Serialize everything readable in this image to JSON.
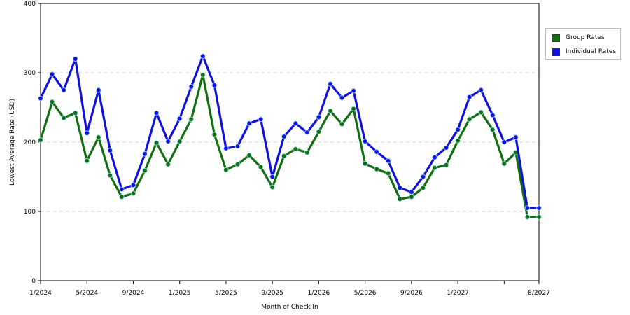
{
  "chart_data": {
    "type": "line",
    "title": "",
    "xlabel": "Month of Check In",
    "ylabel": "Lowest Average Rate (USD)",
    "ylim": [
      0,
      400
    ],
    "yticks": [
      0,
      100,
      200,
      300,
      400
    ],
    "grid": "horizontal dashed",
    "legend_position": "right",
    "x_count": 44,
    "xtick_labels": [
      {
        "i": 0,
        "label": "1/2024"
      },
      {
        "i": 4,
        "label": "5/2024"
      },
      {
        "i": 8,
        "label": "9/2024"
      },
      {
        "i": 12,
        "label": "1/2025"
      },
      {
        "i": 16,
        "label": "5/2025"
      },
      {
        "i": 20,
        "label": "9/2025"
      },
      {
        "i": 24,
        "label": "1/2026"
      },
      {
        "i": 28,
        "label": "5/2026"
      },
      {
        "i": 32,
        "label": "9/2026"
      },
      {
        "i": 36,
        "label": "1/2027"
      },
      {
        "i": 40,
        "label": ""
      },
      {
        "i": 43,
        "label": "8/2027"
      }
    ],
    "series": [
      {
        "name": "Group Rates",
        "color": "#107010",
        "values": [
          203,
          258,
          235,
          242,
          173,
          207,
          152,
          121,
          126,
          159,
          199,
          168,
          201,
          233,
          297,
          211,
          160,
          168,
          181,
          164,
          135,
          180,
          190,
          185,
          215,
          245,
          226,
          248,
          169,
          161,
          155,
          118,
          121,
          134,
          163,
          167,
          202,
          233,
          243,
          218,
          169,
          185,
          92,
          92
        ]
      },
      {
        "name": "Individual Rates",
        "color": "#1010e0",
        "values": [
          263,
          298,
          275,
          320,
          213,
          275,
          188,
          132,
          138,
          183,
          242,
          201,
          234,
          280,
          324,
          282,
          191,
          194,
          227,
          233,
          150,
          208,
          227,
          214,
          236,
          284,
          264,
          274,
          201,
          186,
          173,
          134,
          128,
          150,
          178,
          192,
          218,
          265,
          275,
          239,
          200,
          207,
          105,
          105
        ]
      }
    ]
  }
}
